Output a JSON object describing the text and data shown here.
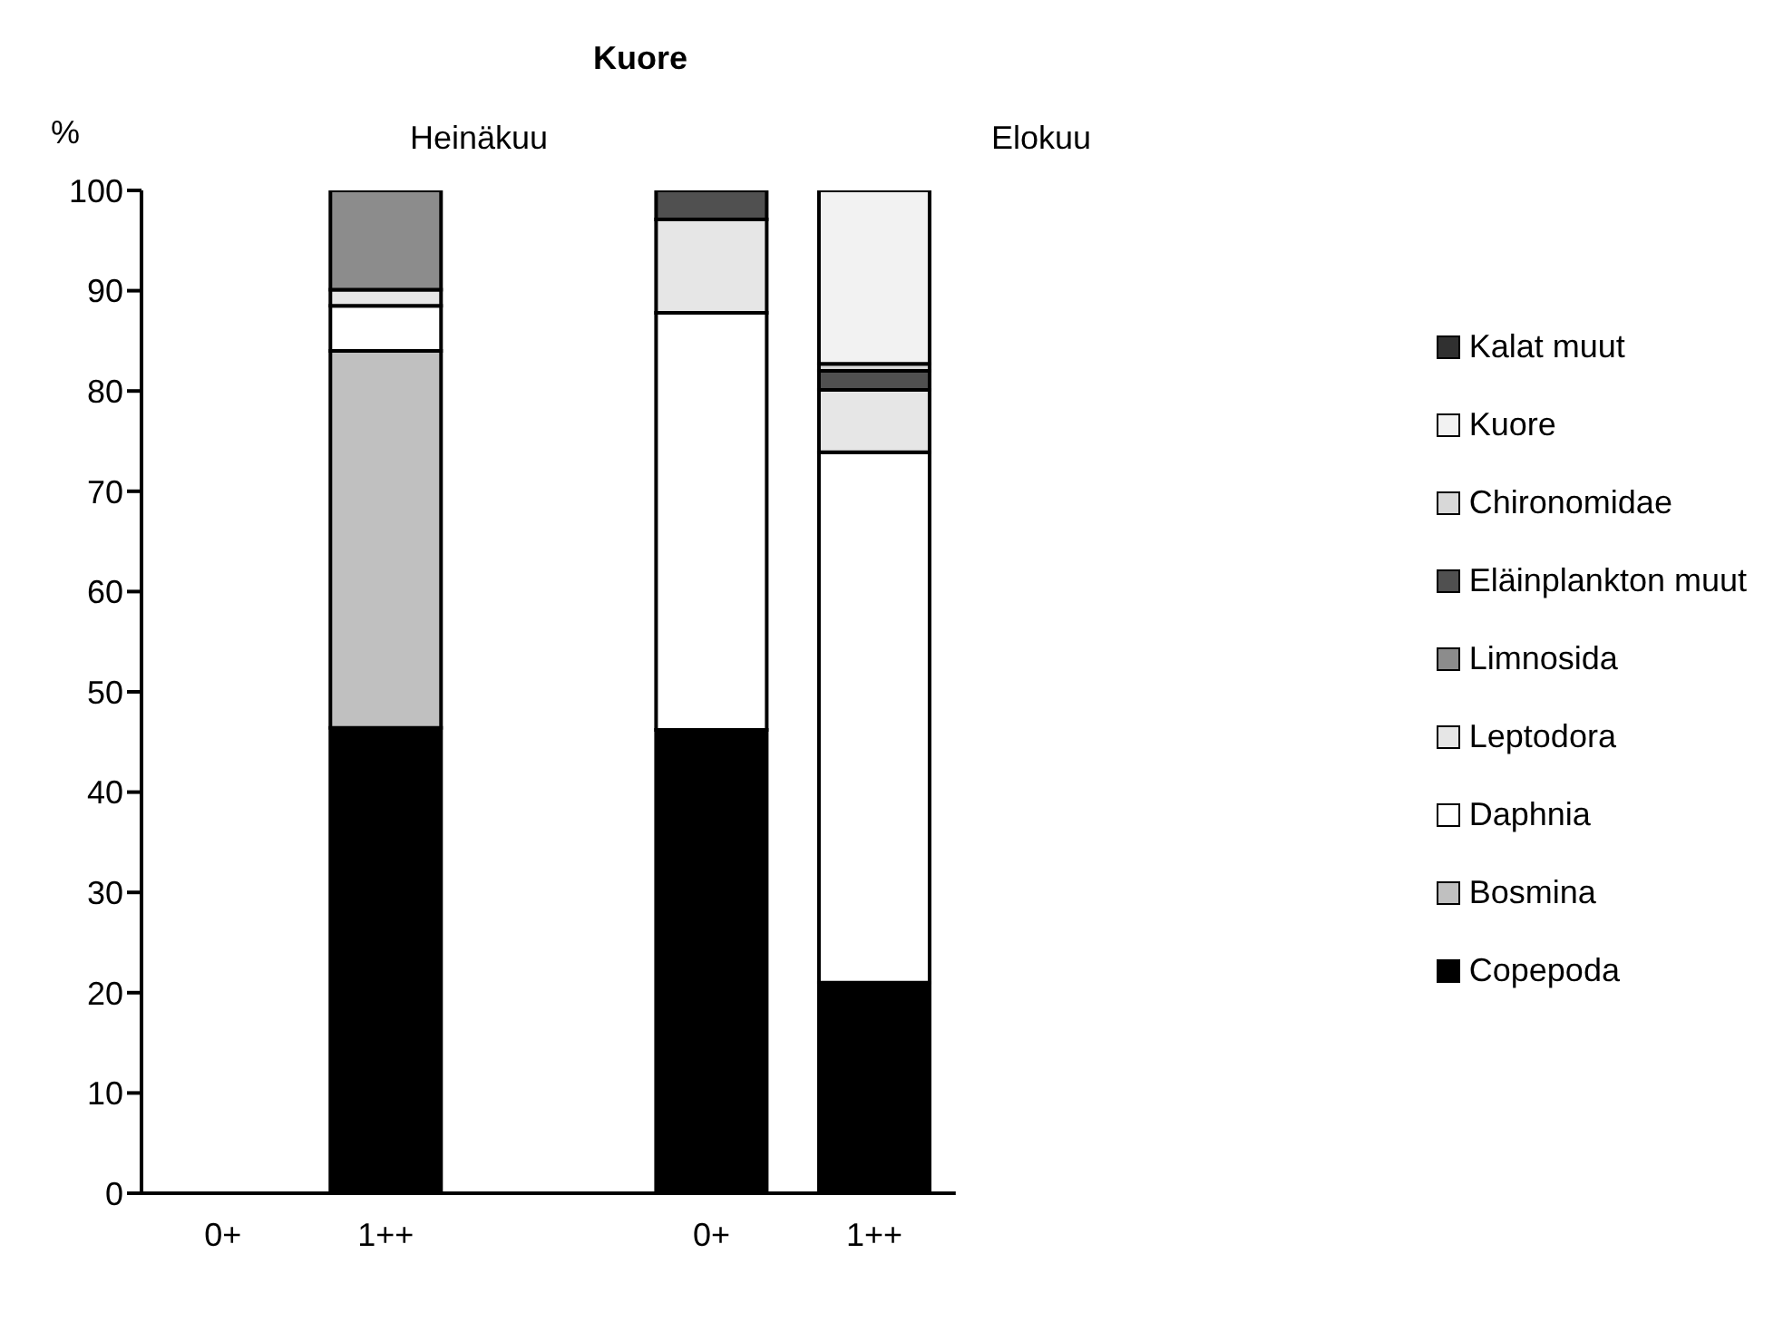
{
  "chart_data": {
    "type": "bar",
    "title": "Kuore",
    "ylabel": "%",
    "stacked": true,
    "categories": [
      "0+",
      "1++",
      null,
      "0+",
      "1++"
    ],
    "series": [
      {
        "name": "Copepoda",
        "color": "#000000",
        "values": [
          null,
          46.4,
          null,
          46.2,
          21.0
        ]
      },
      {
        "name": "Bosmina",
        "color": "#c0c0c0",
        "values": [
          null,
          37.6,
          null,
          null,
          null
        ]
      },
      {
        "name": "Daphnia",
        "color": "#ffffff",
        "values": [
          null,
          4.5,
          null,
          41.6,
          52.9
        ]
      },
      {
        "name": "Leptodora",
        "color": "#e6e6e6",
        "values": [
          null,
          1.6,
          null,
          9.3,
          6.2
        ]
      },
      {
        "name": "Limnosida",
        "color": "#8c8c8c",
        "values": [
          null,
          9.9,
          null,
          null,
          null
        ]
      },
      {
        "name": "Eläinplankton muut",
        "color": "#505050",
        "values": [
          null,
          null,
          null,
          2.9,
          1.9
        ]
      },
      {
        "name": "Chironomidae",
        "color": "#d8d8d8",
        "values": [
          null,
          null,
          null,
          null,
          0.7
        ]
      },
      {
        "name": "Kuore",
        "color": "#f2f2f2",
        "values": [
          null,
          null,
          null,
          null,
          17.3
        ]
      },
      {
        "name": "Kalat muut",
        "color": "#303030",
        "values": [
          null,
          null,
          null,
          null,
          null
        ]
      }
    ],
    "annotations": [
      "Heinäkuu",
      "Elokuu"
    ],
    "ylim": [
      0,
      100
    ],
    "yticks": [
      0,
      10,
      20,
      30,
      40,
      50,
      60,
      70,
      80,
      90,
      100
    ],
    "grid": false,
    "legend": "right"
  }
}
